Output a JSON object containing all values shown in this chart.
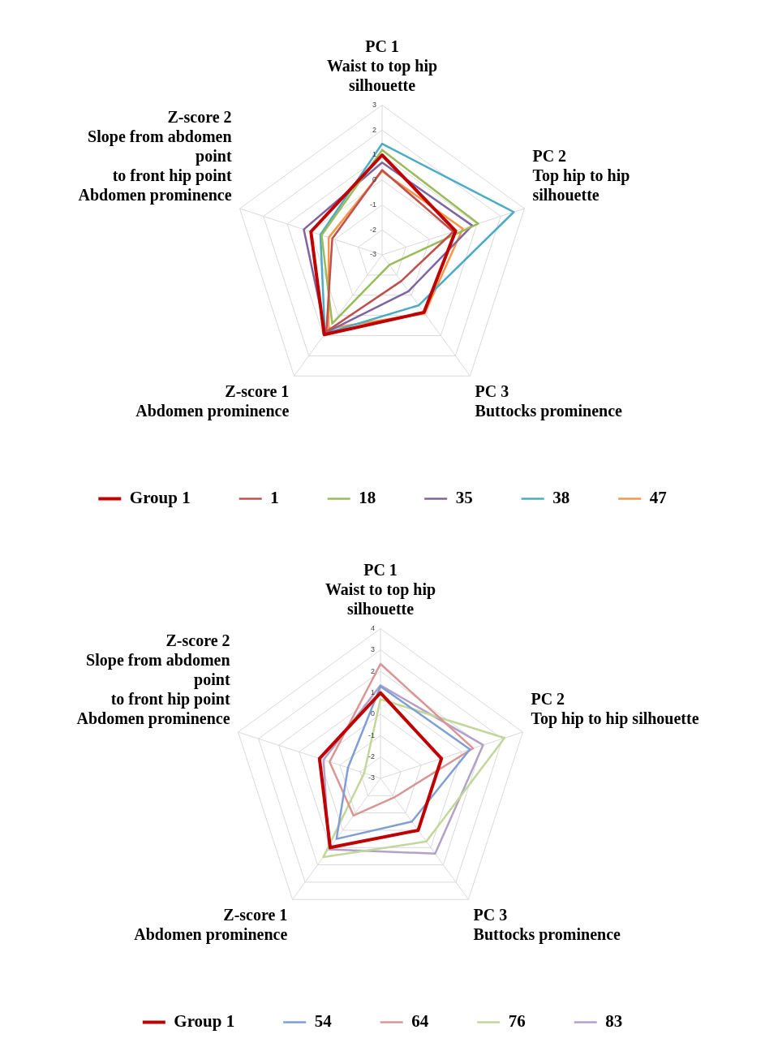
{
  "chart_data": [
    {
      "type": "radar",
      "categories": [
        "PC 1\nWaist to top hip\nsilhouette",
        "PC 2\nTop hip to hip\nsilhouette",
        "PC 3\nButtocks prominence",
        "Z-score 1\nAbdomen prominence",
        "Z-score 2\nSlope from abdomen\npoint\nto front hip point\nAbdomen prominence"
      ],
      "ylim": [
        -3,
        3
      ],
      "yticks": [
        -3,
        -2,
        -1,
        0,
        1,
        2,
        3
      ],
      "grid": true,
      "legend": "bottom",
      "marker": "none",
      "line_style": "solid",
      "series": [
        {
          "name": "Group 1",
          "color": "#c00000",
          "values": [
            1.0,
            0.1,
            -0.15,
            0.95,
            0.0
          ]
        },
        {
          "name": "1",
          "color": "#c0504d",
          "values": [
            0.4,
            0.0,
            -1.7,
            0.8,
            -0.9
          ]
        },
        {
          "name": "18",
          "color": "#9bbb59",
          "values": [
            1.2,
            1.05,
            -2.5,
            0.4,
            -0.45
          ]
        },
        {
          "name": "35",
          "color": "#8064a2",
          "values": [
            0.7,
            0.8,
            -1.2,
            0.85,
            0.3
          ]
        },
        {
          "name": "38",
          "color": "#4bacc6",
          "values": [
            1.45,
            2.55,
            -0.5,
            0.9,
            -0.4
          ]
        },
        {
          "name": "47",
          "color": "#f79646",
          "values": [
            0.35,
            0.4,
            -0.1,
            0.65,
            -0.75
          ]
        }
      ]
    },
    {
      "type": "radar",
      "categories": [
        "PC 1\nWaist to top hip\nsilhouette",
        "PC 2\nTop hip to hip silhouette",
        "PC 3\nButtocks prominence",
        "Z-score 1\nAbdomen prominence",
        "Z-score 2\nSlope from abdomen\npoint\nto front hip point\nAbdomen prominence"
      ],
      "ylim": [
        -3,
        4
      ],
      "yticks": [
        -3,
        -2,
        -1,
        0,
        1,
        2,
        3,
        4
      ],
      "grid": true,
      "legend": "bottom",
      "marker": "none",
      "line_style": "solid",
      "series": [
        {
          "name": "Group 1",
          "color": "#c00000",
          "values": [
            1.0,
            0.0,
            0.0,
            1.0,
            0.0
          ]
        },
        {
          "name": "54",
          "color": "#7f9fd4",
          "values": [
            1.3,
            1.4,
            -0.5,
            0.5,
            -1.4
          ]
        },
        {
          "name": "64",
          "color": "#d99694",
          "values": [
            2.35,
            1.55,
            -1.9,
            -0.85,
            -0.5
          ]
        },
        {
          "name": "76",
          "color": "#c3d69b",
          "values": [
            0.7,
            3.1,
            0.65,
            1.55,
            -2.2
          ]
        },
        {
          "name": "83",
          "color": "#b3a2c7",
          "values": [
            1.35,
            2.05,
            1.35,
            1.1,
            -0.2
          ]
        }
      ]
    }
  ]
}
